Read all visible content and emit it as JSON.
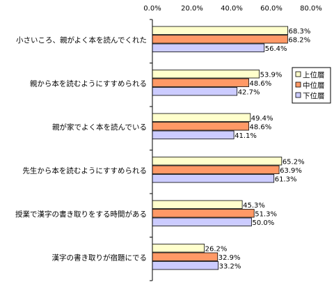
{
  "chart_data": {
    "type": "bar",
    "orientation": "horizontal",
    "categories": [
      "小さいころ、親がよく本を読んでくれた",
      "親から本を読むようにすすめられる",
      "親が家でよく本を読んでいる",
      "先生から本を読むようにすすめられる",
      "授業で漢字の書き取りをする時間がある",
      "漢字の書き取りが宿題にでる"
    ],
    "series": [
      {
        "name": "上位層",
        "color": "#FFFFCC",
        "values": [
          68.3,
          53.9,
          49.4,
          65.2,
          45.3,
          26.2
        ],
        "labels": [
          "68.3%",
          "53.9%",
          "49.4%",
          "65.2%",
          "45.3%",
          "26.2%"
        ]
      },
      {
        "name": "中位層",
        "color": "#FF9966",
        "values": [
          68.2,
          48.6,
          48.6,
          63.9,
          51.3,
          32.9
        ],
        "labels": [
          "68.2%",
          "48.6%",
          "48.6%",
          "63.9%",
          "51.3%",
          "32.9%"
        ]
      },
      {
        "name": "下位層",
        "color": "#CCCCFF",
        "values": [
          56.4,
          42.7,
          41.1,
          61.3,
          50.0,
          33.2
        ],
        "labels": [
          "56.4%",
          "42.7%",
          "41.1%",
          "61.3%",
          "50.0%",
          "33.2%"
        ]
      }
    ],
    "x_ticks": [
      "0.0%",
      "20.0%",
      "40.0%",
      "60.0%",
      "80.0%"
    ],
    "xlim": [
      0,
      80
    ],
    "grid": false,
    "legend_position": "right"
  }
}
